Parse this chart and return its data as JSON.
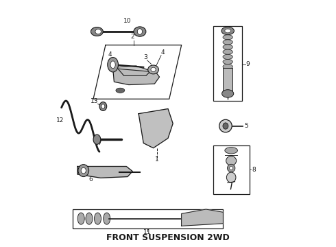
{
  "title": "FRONT SUSPENSION 2WD",
  "title_fontsize": 9,
  "title_fontweight": "bold",
  "background_color": "#ffffff",
  "line_color": "#1a1a1a",
  "fig_width": 4.9,
  "fig_height": 3.6,
  "dpi": 100
}
